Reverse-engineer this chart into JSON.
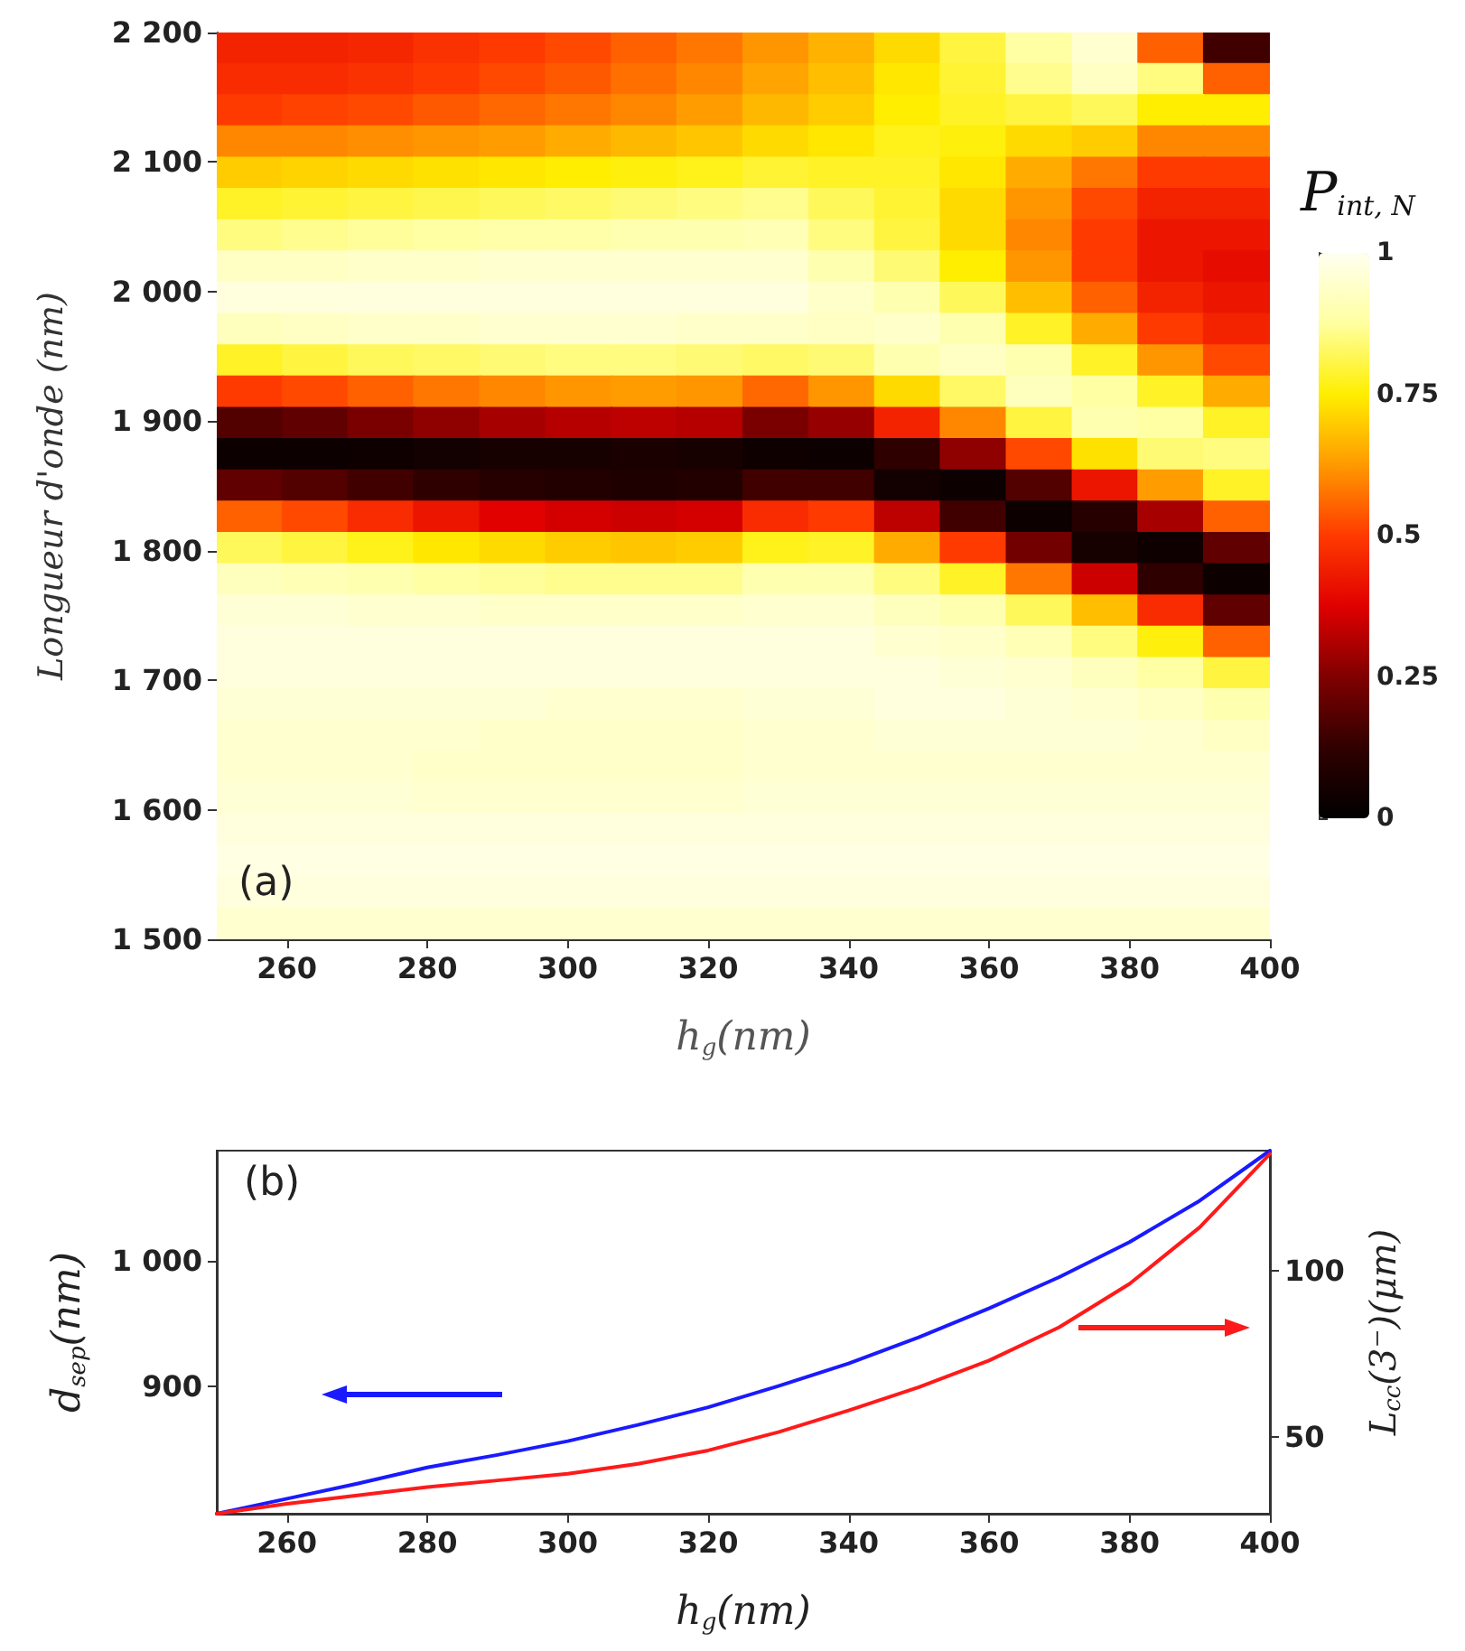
{
  "chart_data": [
    {
      "type": "heatmap",
      "xlabel": "h$_{g}$(nm)",
      "ylabel": "Longueur d'onde (nm)",
      "clabel": "P$_{int, N}$",
      "annotations": [
        "(a)"
      ],
      "x": [
        254.7,
        264.1,
        273.4,
        282.8,
        292.2,
        301.6,
        310.9,
        320.3,
        329.7,
        339.1,
        348.4,
        357.8,
        367.2,
        376.6,
        385.9,
        395.3
      ],
      "y": [
        2187.9,
        2163.8,
        2139.7,
        2115.5,
        2091.4,
        2067.2,
        2043.1,
        2019.0,
        1994.8,
        1970.7,
        1946.6,
        1922.4,
        1898.3,
        1874.1,
        1850.0,
        1825.9,
        1801.7,
        1777.6,
        1753.4,
        1729.3,
        1705.2,
        1681.0,
        1656.9,
        1632.8,
        1608.6,
        1584.5,
        1560.3,
        1536.2,
        1512.1
      ],
      "xlim": [
        250,
        400
      ],
      "xticks": [
        260,
        280,
        300,
        320,
        340,
        360,
        380,
        400
      ],
      "ylim": [
        1500,
        2200
      ],
      "yticks": [
        {
          "value": 1500,
          "label": "1 500"
        },
        {
          "value": 1600,
          "label": "1 600"
        },
        {
          "value": 1700,
          "label": "1 700"
        },
        {
          "value": 1800,
          "label": "1 800"
        },
        {
          "value": 1900,
          "label": "1 900"
        },
        {
          "value": 2000,
          "label": "2 000"
        },
        {
          "value": 2100,
          "label": "2 100"
        },
        {
          "value": 2200,
          "label": "2 200"
        }
      ],
      "clim": [
        0,
        1
      ],
      "cticks": [
        0,
        0.25,
        0.5,
        0.75,
        1
      ],
      "cells": [
        [
          0.45,
          0.45,
          0.46,
          0.48,
          0.5,
          0.52,
          0.55,
          0.58,
          0.62,
          0.66,
          0.72,
          0.8,
          0.88,
          0.95,
          0.55,
          0.15
        ],
        [
          0.47,
          0.47,
          0.48,
          0.5,
          0.52,
          0.54,
          0.57,
          0.6,
          0.64,
          0.68,
          0.74,
          0.79,
          0.86,
          0.93,
          0.85,
          0.55
        ],
        [
          0.5,
          0.51,
          0.52,
          0.54,
          0.56,
          0.58,
          0.6,
          0.63,
          0.67,
          0.7,
          0.75,
          0.78,
          0.8,
          0.82,
          0.75,
          0.75
        ],
        [
          0.6,
          0.6,
          0.61,
          0.62,
          0.63,
          0.65,
          0.67,
          0.69,
          0.72,
          0.74,
          0.77,
          0.76,
          0.72,
          0.7,
          0.6,
          0.6
        ],
        [
          0.7,
          0.71,
          0.72,
          0.73,
          0.74,
          0.75,
          0.76,
          0.77,
          0.79,
          0.78,
          0.78,
          0.74,
          0.65,
          0.58,
          0.5,
          0.5
        ],
        [
          0.78,
          0.79,
          0.8,
          0.81,
          0.82,
          0.83,
          0.84,
          0.85,
          0.86,
          0.82,
          0.79,
          0.72,
          0.62,
          0.52,
          0.45,
          0.45
        ],
        [
          0.85,
          0.86,
          0.87,
          0.88,
          0.89,
          0.89,
          0.9,
          0.9,
          0.91,
          0.85,
          0.8,
          0.72,
          0.6,
          0.5,
          0.42,
          0.42
        ],
        [
          0.93,
          0.93,
          0.94,
          0.94,
          0.95,
          0.95,
          0.95,
          0.95,
          0.95,
          0.9,
          0.84,
          0.75,
          0.62,
          0.5,
          0.42,
          0.4
        ],
        [
          0.97,
          0.97,
          0.97,
          0.97,
          0.97,
          0.97,
          0.97,
          0.97,
          0.97,
          0.94,
          0.9,
          0.82,
          0.68,
          0.55,
          0.45,
          0.42
        ],
        [
          0.92,
          0.93,
          0.94,
          0.94,
          0.95,
          0.95,
          0.95,
          0.94,
          0.94,
          0.93,
          0.94,
          0.9,
          0.78,
          0.65,
          0.5,
          0.45
        ],
        [
          0.78,
          0.8,
          0.82,
          0.83,
          0.84,
          0.85,
          0.85,
          0.84,
          0.83,
          0.84,
          0.9,
          0.93,
          0.9,
          0.78,
          0.62,
          0.52
        ],
        [
          0.5,
          0.52,
          0.55,
          0.58,
          0.6,
          0.62,
          0.63,
          0.62,
          0.56,
          0.62,
          0.72,
          0.83,
          0.92,
          0.88,
          0.78,
          0.65
        ],
        [
          0.18,
          0.2,
          0.24,
          0.27,
          0.3,
          0.32,
          0.33,
          0.32,
          0.24,
          0.28,
          0.45,
          0.6,
          0.8,
          0.9,
          0.88,
          0.78
        ],
        [
          0.03,
          0.03,
          0.04,
          0.05,
          0.06,
          0.06,
          0.07,
          0.06,
          0.04,
          0.03,
          0.12,
          0.27,
          0.52,
          0.73,
          0.84,
          0.85
        ],
        [
          0.2,
          0.18,
          0.15,
          0.12,
          0.1,
          0.09,
          0.08,
          0.09,
          0.15,
          0.15,
          0.05,
          0.03,
          0.18,
          0.42,
          0.63,
          0.78
        ],
        [
          0.55,
          0.52,
          0.47,
          0.42,
          0.38,
          0.36,
          0.35,
          0.36,
          0.47,
          0.5,
          0.33,
          0.15,
          0.03,
          0.1,
          0.3,
          0.55
        ],
        [
          0.82,
          0.8,
          0.77,
          0.74,
          0.72,
          0.7,
          0.69,
          0.7,
          0.77,
          0.78,
          0.65,
          0.5,
          0.23,
          0.06,
          0.04,
          0.2
        ],
        [
          0.92,
          0.91,
          0.9,
          0.88,
          0.87,
          0.86,
          0.86,
          0.86,
          0.9,
          0.9,
          0.85,
          0.78,
          0.58,
          0.35,
          0.12,
          0.03
        ],
        [
          0.96,
          0.96,
          0.95,
          0.95,
          0.94,
          0.94,
          0.94,
          0.94,
          0.95,
          0.95,
          0.92,
          0.9,
          0.82,
          0.68,
          0.47,
          0.2
        ],
        [
          0.97,
          0.97,
          0.97,
          0.97,
          0.97,
          0.97,
          0.97,
          0.97,
          0.97,
          0.97,
          0.95,
          0.94,
          0.91,
          0.85,
          0.76,
          0.55
        ],
        [
          0.97,
          0.97,
          0.97,
          0.97,
          0.97,
          0.97,
          0.97,
          0.97,
          0.97,
          0.97,
          0.97,
          0.96,
          0.95,
          0.92,
          0.88,
          0.8
        ],
        [
          0.96,
          0.96,
          0.96,
          0.96,
          0.96,
          0.95,
          0.95,
          0.95,
          0.96,
          0.96,
          0.97,
          0.97,
          0.96,
          0.95,
          0.93,
          0.9
        ],
        [
          0.95,
          0.95,
          0.95,
          0.95,
          0.94,
          0.94,
          0.94,
          0.94,
          0.95,
          0.95,
          0.96,
          0.96,
          0.96,
          0.96,
          0.95,
          0.93
        ],
        [
          0.95,
          0.95,
          0.95,
          0.94,
          0.94,
          0.94,
          0.94,
          0.94,
          0.95,
          0.95,
          0.95,
          0.95,
          0.95,
          0.95,
          0.95,
          0.95
        ],
        [
          0.96,
          0.96,
          0.96,
          0.95,
          0.95,
          0.95,
          0.95,
          0.95,
          0.96,
          0.96,
          0.96,
          0.96,
          0.96,
          0.96,
          0.96,
          0.96
        ],
        [
          0.97,
          0.97,
          0.97,
          0.97,
          0.97,
          0.97,
          0.97,
          0.97,
          0.97,
          0.97,
          0.97,
          0.97,
          0.97,
          0.97,
          0.97,
          0.97
        ],
        [
          0.98,
          0.98,
          0.98,
          0.98,
          0.98,
          0.98,
          0.98,
          0.98,
          0.98,
          0.98,
          0.98,
          0.98,
          0.98,
          0.98,
          0.98,
          0.98
        ],
        [
          0.97,
          0.97,
          0.97,
          0.97,
          0.97,
          0.97,
          0.97,
          0.97,
          0.97,
          0.97,
          0.97,
          0.97,
          0.97,
          0.97,
          0.97,
          0.97
        ],
        [
          0.95,
          0.95,
          0.95,
          0.95,
          0.95,
          0.95,
          0.95,
          0.95,
          0.95,
          0.95,
          0.95,
          0.95,
          0.95,
          0.95,
          0.95,
          0.95
        ]
      ]
    },
    {
      "type": "line",
      "xlabel": "h$_{g}$(nm)",
      "ylabel": "d$_{sep}$(nm)",
      "y2label": "L$_{cc}$(3⁻)(μm)",
      "annotations": [
        "(b)"
      ],
      "x": [
        250,
        260,
        270,
        280,
        290,
        300,
        310,
        320,
        330,
        340,
        350,
        360,
        370,
        380,
        390,
        400
      ],
      "xlim": [
        250,
        400
      ],
      "xticks": [
        260,
        280,
        300,
        320,
        340,
        360,
        380,
        400
      ],
      "ylim": [
        798,
        1088
      ],
      "yticks": [
        900,
        {
          "value": 1000,
          "label": "1 000"
        }
      ],
      "y2lim": [
        27,
        136
      ],
      "y2ticks": [
        50,
        100
      ],
      "marker": "none",
      "line_style": "solid",
      "series": [
        {
          "color": "#1a1aff",
          "values": [
            798,
            810,
            822,
            835,
            845,
            856,
            869,
            883,
            900,
            918,
            939,
            962,
            987,
            1015,
            1048,
            1088
          ]
        },
        {
          "color": "#ff1a1a",
          "axis": "y2",
          "values": [
            27,
            30,
            32.5,
            35,
            37,
            39,
            42,
            46,
            51.5,
            58,
            65,
            73,
            83,
            96,
            113,
            135
          ]
        }
      ]
    }
  ]
}
